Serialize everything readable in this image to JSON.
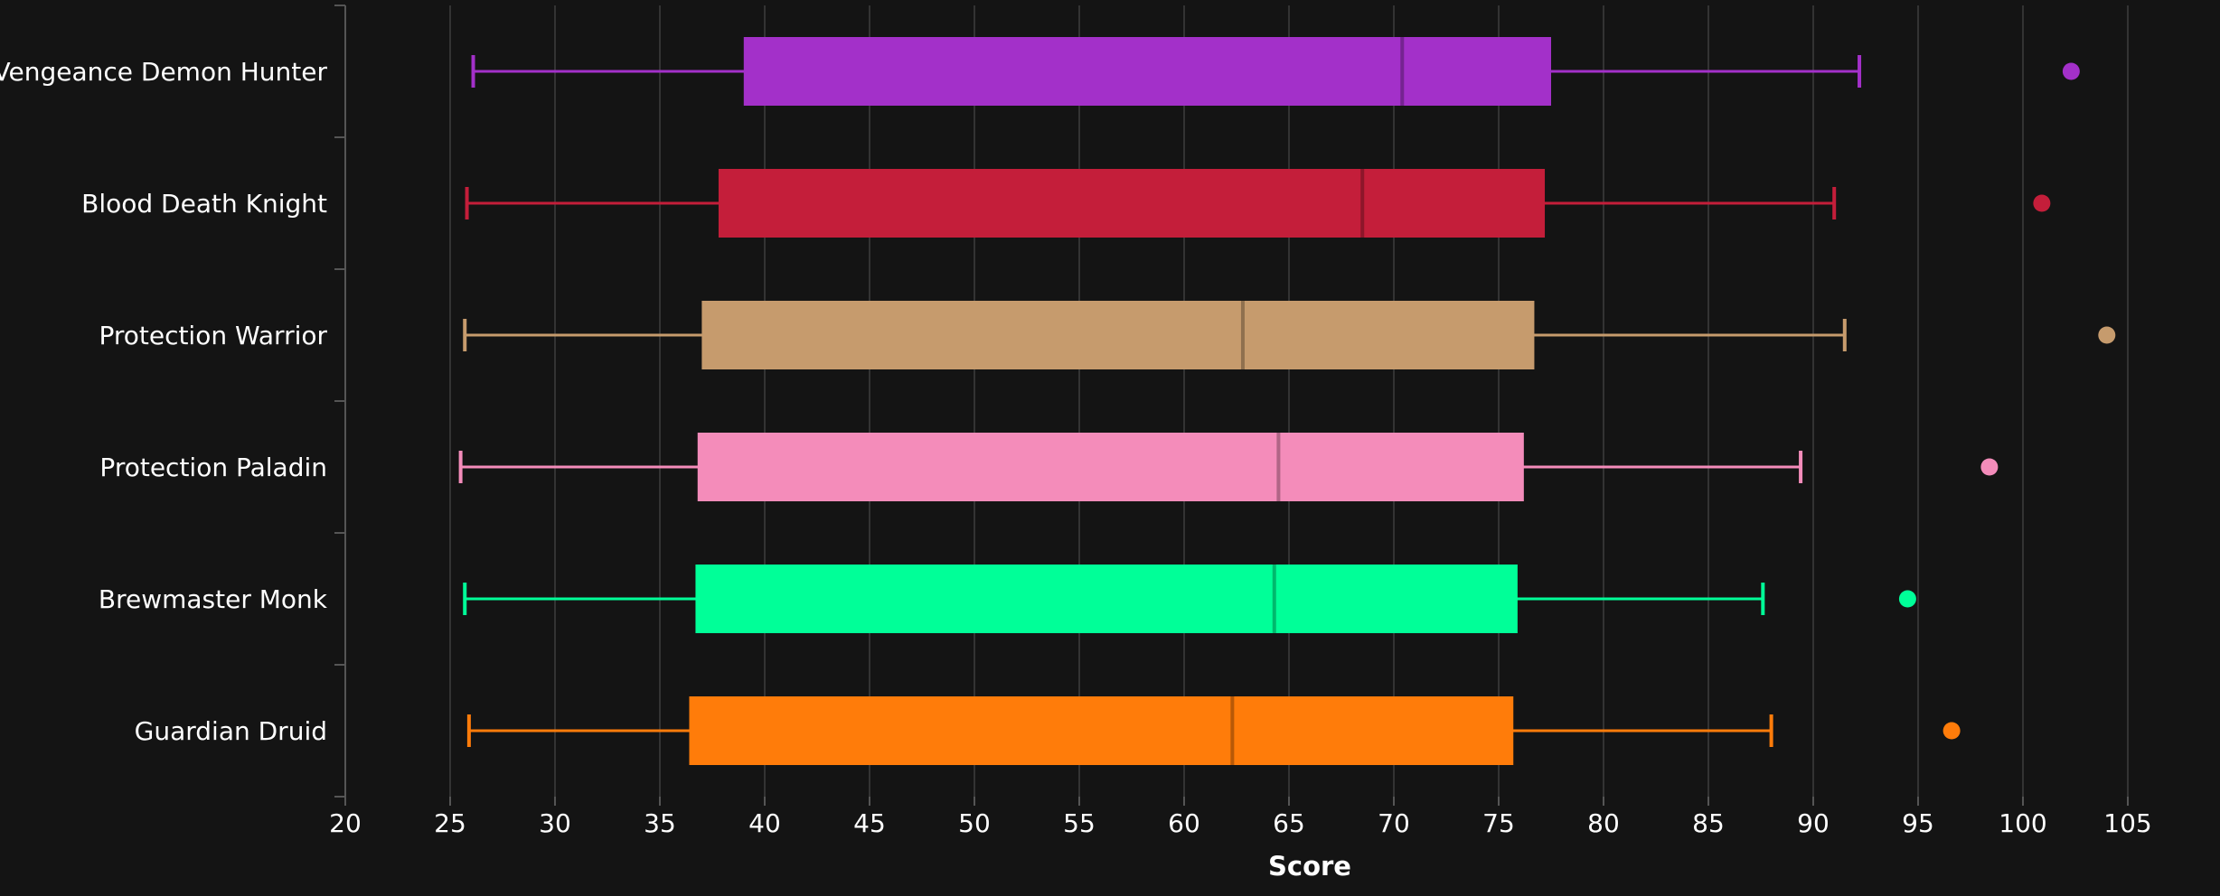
{
  "chart_data": {
    "type": "boxplot",
    "orientation": "horizontal",
    "xlabel": "Score",
    "xlim": [
      20,
      105
    ],
    "xticks": [
      20,
      25,
      30,
      35,
      40,
      45,
      50,
      55,
      60,
      65,
      70,
      75,
      80,
      85,
      90,
      95,
      100,
      105
    ],
    "grid": "vertical",
    "legend": "none",
    "series": [
      {
        "name": "Vengeance Demon Hunter",
        "color": "#A330C9",
        "min": 26.1,
        "q1": 39.0,
        "median": 70.4,
        "q3": 77.5,
        "max": 92.2,
        "outliers": [
          102.3
        ]
      },
      {
        "name": "Blood Death Knight",
        "color": "#C41E3A",
        "min": 25.8,
        "q1": 37.8,
        "median": 68.5,
        "q3": 77.2,
        "max": 91.0,
        "outliers": [
          100.9
        ]
      },
      {
        "name": "Protection Warrior",
        "color": "#C69B6D",
        "min": 25.7,
        "q1": 37.0,
        "median": 62.8,
        "q3": 76.7,
        "max": 91.5,
        "outliers": [
          104.0
        ]
      },
      {
        "name": "Protection Paladin",
        "color": "#F48CBA",
        "min": 25.5,
        "q1": 36.8,
        "median": 64.5,
        "q3": 76.2,
        "max": 89.4,
        "outliers": [
          98.4
        ]
      },
      {
        "name": "Brewmaster Monk",
        "color": "#00FF98",
        "min": 25.7,
        "q1": 36.7,
        "median": 64.3,
        "q3": 75.9,
        "max": 87.6,
        "outliers": [
          94.5
        ]
      },
      {
        "name": "Guardian Druid",
        "color": "#FF7C0A",
        "min": 25.9,
        "q1": 36.4,
        "median": 62.3,
        "q3": 75.7,
        "max": 88.0,
        "outliers": [
          96.6
        ]
      }
    ]
  }
}
